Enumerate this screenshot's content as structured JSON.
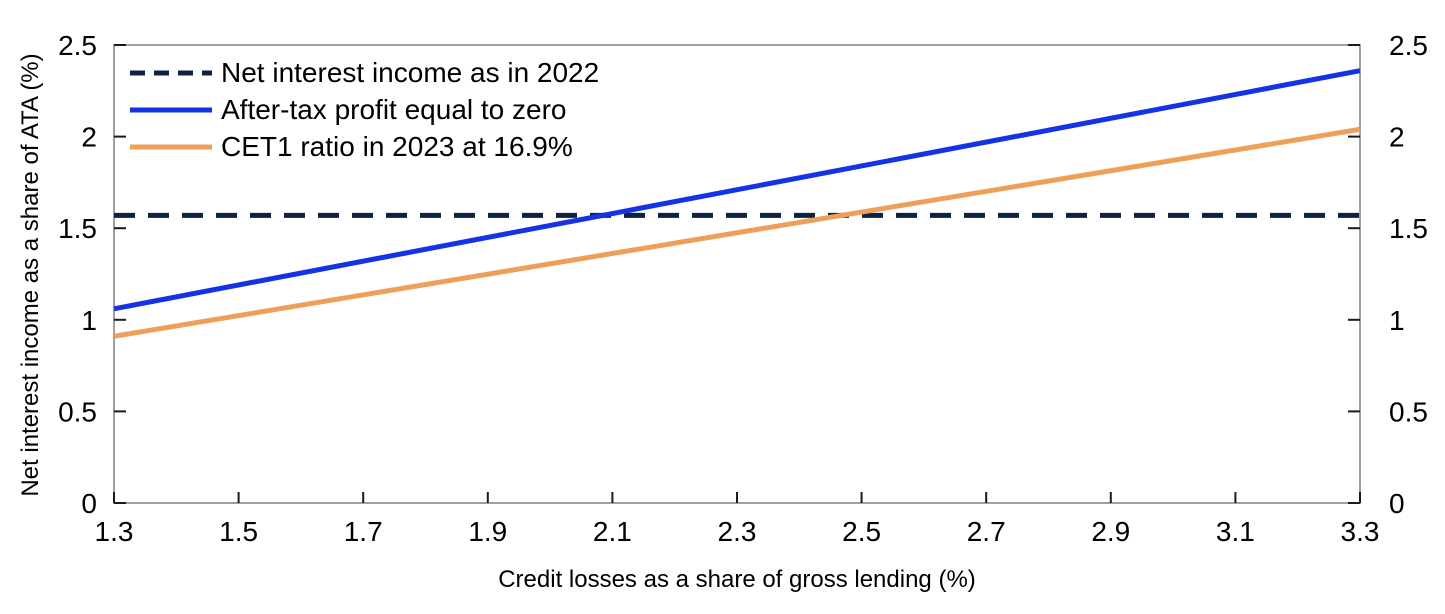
{
  "chart_data": {
    "type": "line",
    "title": "",
    "xlabel": "Credit losses as a share of gross lending (%)",
    "ylabel": "Net interest income as a share of ATA (%)",
    "xlim": [
      1.3,
      3.3
    ],
    "ylim": [
      0,
      2.5
    ],
    "x_ticks": {
      "values": [
        1.3,
        1.5,
        1.7,
        1.9,
        2.1,
        2.3,
        2.5,
        2.7,
        2.9,
        3.1,
        3.3
      ],
      "labels": [
        "1.3",
        "1.5",
        "1.7",
        "1.9",
        "2.1",
        "2.3",
        "2.5",
        "2.7",
        "2.9",
        "3.1",
        "3.3"
      ]
    },
    "y_ticks": {
      "values": [
        0,
        0.5,
        1,
        1.5,
        2,
        2.5
      ],
      "labels": [
        "0",
        "0.5",
        "1",
        "1.5",
        "2",
        "2.5"
      ]
    },
    "y_axis_right_mirrored": true,
    "grid": false,
    "legend_position": "top-left-inside",
    "series": [
      {
        "name": "Net interest income as in 2022",
        "color": "#0d2240",
        "style": "dashed",
        "x": [
          1.3,
          3.3
        ],
        "y": [
          1.57,
          1.57
        ]
      },
      {
        "name": "After-tax profit equal to zero",
        "color": "#1532e6",
        "style": "solid",
        "x": [
          1.3,
          3.3
        ],
        "y": [
          1.06,
          2.36
        ]
      },
      {
        "name": "CET1 ratio in 2023 at 16.9%",
        "color": "#eca05a",
        "style": "solid",
        "x": [
          1.3,
          3.3
        ],
        "y": [
          0.91,
          2.04
        ]
      }
    ],
    "style": {
      "axis_frame_color": "#808080",
      "tick_color": "#1a1a1a",
      "text_color": "#000000",
      "background": "#ffffff",
      "line_width": 5,
      "plot_dash_pattern": "21 13",
      "legend_dash_pattern": "15 9"
    }
  }
}
